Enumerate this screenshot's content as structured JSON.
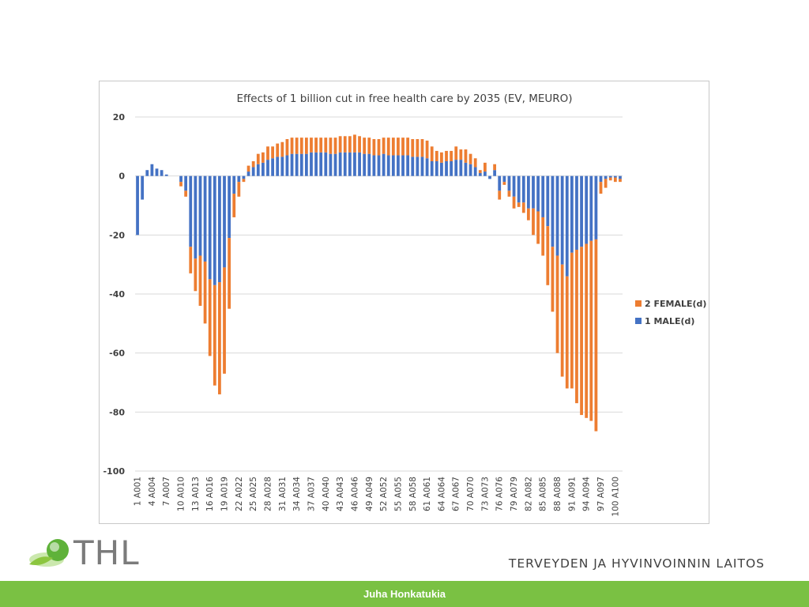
{
  "chart_data": {
    "type": "bar",
    "stacked": true,
    "title": "Effects of 1 billion cut in free health care by 2035 (EV, MEURO)",
    "ylim": [
      -100,
      20
    ],
    "yticks": [
      20,
      0,
      -20,
      -40,
      -60,
      -80,
      -100
    ],
    "grid": true,
    "legend_position": "right",
    "categories": [
      "1 A001",
      "2 A002",
      "3 A003",
      "4 A004",
      "5 A005",
      "6 A006",
      "7 A007",
      "8 A008",
      "9 A009",
      "10 A010",
      "11 A011",
      "12 A012",
      "13 A013",
      "14 A014",
      "15 A015",
      "16 A016",
      "17 A017",
      "18 A018",
      "19 A019",
      "20 A020",
      "21 A021",
      "22 A022",
      "23 A023",
      "24 A024",
      "25 A025",
      "26 A026",
      "27 A027",
      "28 A028",
      "29 A029",
      "30 A030",
      "31 A031",
      "32 A032",
      "33 A033",
      "34 A034",
      "35 A035",
      "36 A036",
      "37 A037",
      "38 A038",
      "39 A039",
      "40 A040",
      "41 A041",
      "42 A042",
      "43 A043",
      "44 A044",
      "45 A045",
      "46 A046",
      "47 A047",
      "48 A048",
      "49 A049",
      "50 A050",
      "51 A051",
      "52 A052",
      "53 A053",
      "54 A054",
      "55 A055",
      "56 A056",
      "57 A057",
      "58 A058",
      "59 A059",
      "60 A060",
      "61 A061",
      "62 A062",
      "63 A063",
      "64 A064",
      "65 A065",
      "66 A066",
      "67 A067",
      "68 A068",
      "69 A069",
      "70 A070",
      "71 A071",
      "72 A072",
      "73 A073",
      "74 A074",
      "75 A075",
      "76 A076",
      "77 A077",
      "78 A078",
      "79 A079",
      "80 A080",
      "81 A081",
      "82 A082",
      "83 A083",
      "84 A084",
      "85 A085",
      "86 A086",
      "87 A087",
      "88 A088",
      "89 A089",
      "90 A090",
      "91 A091",
      "92 A092",
      "93 A093",
      "94 A094",
      "95 A095",
      "96 A096",
      "97 A097",
      "98 A098",
      "99 A099",
      "100 A100",
      "101 A101"
    ],
    "x_tick_labels": [
      "1 A001",
      "4 A004",
      "7 A007",
      "10 A010",
      "13 A013",
      "16 A016",
      "19 A019",
      "22 A022",
      "25 A025",
      "28 A028",
      "31 A031",
      "34 A034",
      "37 A037",
      "40 A040",
      "43 A043",
      "46 A046",
      "49 A049",
      "52 A052",
      "55 A055",
      "58 A058",
      "61 A061",
      "64 A064",
      "67 A067",
      "70 A070",
      "73 A073",
      "76 A076",
      "79 A079",
      "82 A082",
      "85 A085",
      "88 A088",
      "91 A091",
      "94 A094",
      "97 A097",
      "100 A100"
    ],
    "series": [
      {
        "name": "1 MALE(d)",
        "color": "#4472c4",
        "values": [
          -20,
          -8,
          2,
          4,
          2.5,
          2,
          0.5,
          0,
          0,
          -2,
          -5,
          -24,
          -28,
          -27,
          -29,
          -35,
          -37,
          -36,
          -31,
          -21,
          -6,
          -2,
          -1,
          1.5,
          3,
          4,
          4.5,
          5.5,
          6,
          6.5,
          6.5,
          7,
          7.5,
          7.5,
          7.5,
          7.5,
          8,
          8,
          8,
          8,
          7.5,
          7.5,
          8,
          8,
          8,
          8,
          8,
          7.5,
          7.5,
          7,
          7,
          7.5,
          7,
          7,
          7,
          7,
          7,
          6.5,
          6.5,
          6.5,
          6,
          5,
          5,
          4.5,
          5,
          5,
          5.5,
          5.5,
          4.5,
          4,
          3,
          1,
          1.5,
          -1,
          2,
          -5,
          -2,
          -5,
          -7,
          -9,
          -9,
          -11,
          -11,
          -12,
          -14,
          -17,
          -24,
          -27,
          -30,
          -34,
          -26,
          -25,
          -24,
          -23,
          -22,
          -21.5,
          -2,
          -1,
          -0.5,
          -0.5,
          -1
        ]
      },
      {
        "name": "2 FEMALE(d)",
        "color": "#ed7d31",
        "values": [
          0,
          0,
          0,
          0,
          0,
          0,
          0,
          0,
          0,
          -1.5,
          -2,
          -9,
          -11,
          -17,
          -21,
          -26,
          -34,
          -38,
          -36,
          -24,
          -8,
          -5,
          -1,
          2,
          2,
          3.5,
          3.5,
          4.5,
          4,
          4.5,
          5,
          5.5,
          5.5,
          5.5,
          5.5,
          5.5,
          5,
          5,
          5,
          5,
          5.5,
          5.5,
          5.5,
          5.5,
          5.5,
          6,
          5.5,
          5.5,
          5.5,
          5.5,
          5.5,
          5.5,
          6,
          6,
          6,
          6,
          6,
          6,
          6,
          6,
          6,
          5,
          3.5,
          3.5,
          3.5,
          3.5,
          4.5,
          3.5,
          4.5,
          3.5,
          3,
          1,
          3,
          0,
          2,
          -3,
          -1,
          -2,
          -4,
          -1.5,
          -3.5,
          -4,
          -9,
          -11,
          -13,
          -20,
          -22,
          -33,
          -38,
          -38,
          -46,
          -52,
          -57,
          -59,
          -61,
          -65,
          -4,
          -3,
          -1,
          -1.5,
          -1
        ]
      }
    ]
  },
  "logo_text": "THL",
  "institute_name": "TERVEYDEN JA HYVINVOINNIN LAITOS",
  "author": "Juha Honkatukia"
}
